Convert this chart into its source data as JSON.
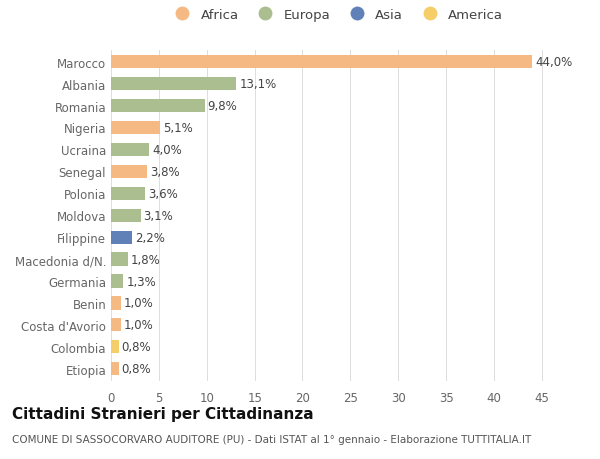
{
  "categories": [
    "Marocco",
    "Albania",
    "Romania",
    "Nigeria",
    "Ucraina",
    "Senegal",
    "Polonia",
    "Moldova",
    "Filippine",
    "Macedonia d/N.",
    "Germania",
    "Benin",
    "Costa d'Avorio",
    "Colombia",
    "Etiopia"
  ],
  "values": [
    44.0,
    13.1,
    9.8,
    5.1,
    4.0,
    3.8,
    3.6,
    3.1,
    2.2,
    1.8,
    1.3,
    1.0,
    1.0,
    0.8,
    0.8
  ],
  "labels": [
    "44,0%",
    "13,1%",
    "9,8%",
    "5,1%",
    "4,0%",
    "3,8%",
    "3,6%",
    "3,1%",
    "2,2%",
    "1,8%",
    "1,3%",
    "1,0%",
    "1,0%",
    "0,8%",
    "0,8%"
  ],
  "continents": [
    "Africa",
    "Europa",
    "Europa",
    "Africa",
    "Europa",
    "Africa",
    "Europa",
    "Europa",
    "Asia",
    "Europa",
    "Europa",
    "Africa",
    "Africa",
    "America",
    "Africa"
  ],
  "continent_colors": {
    "Africa": "#F5B983",
    "Europa": "#ABBE8F",
    "Asia": "#6080B8",
    "America": "#F5CE6A"
  },
  "legend_order": [
    "Africa",
    "Europa",
    "Asia",
    "America"
  ],
  "xlim": [
    0,
    47
  ],
  "xticks": [
    0,
    5,
    10,
    15,
    20,
    25,
    30,
    35,
    40,
    45
  ],
  "title": "Cittadini Stranieri per Cittadinanza",
  "subtitle": "COMUNE DI SASSOCORVARO AUDITORE (PU) - Dati ISTAT al 1° gennaio - Elaborazione TUTTITALIA.IT",
  "background_color": "#FFFFFF",
  "bar_height": 0.6,
  "label_fontsize": 8.5,
  "tick_fontsize": 8.5,
  "title_fontsize": 11,
  "subtitle_fontsize": 7.5
}
